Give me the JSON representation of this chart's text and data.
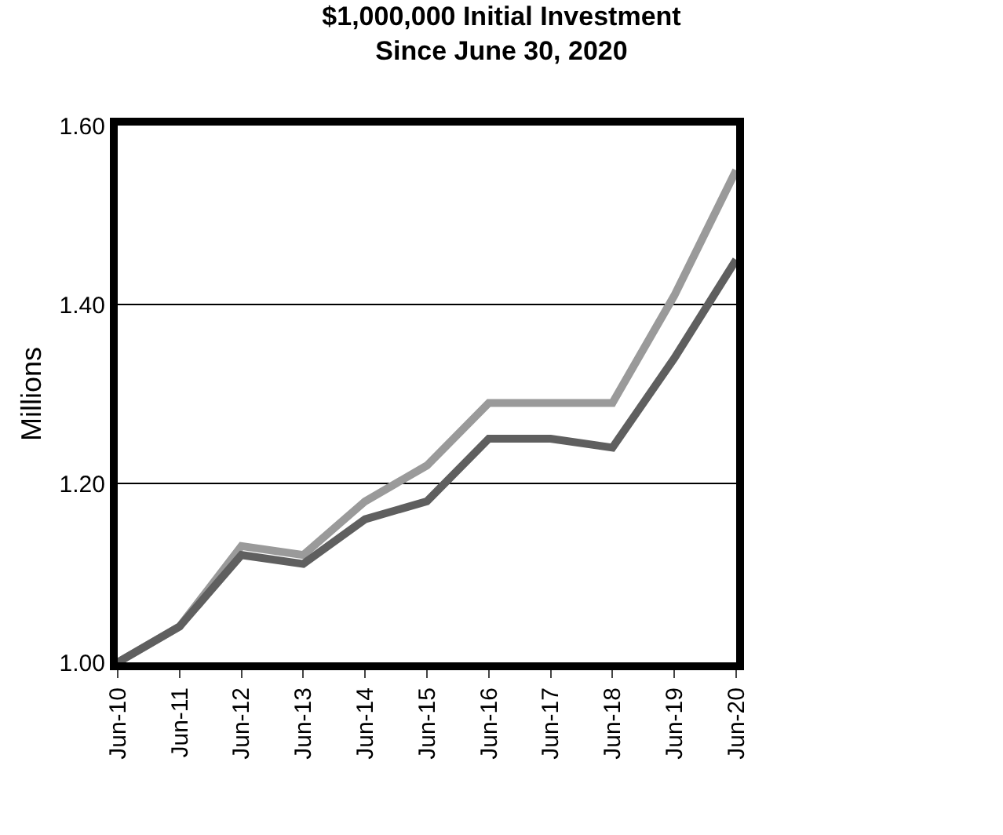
{
  "chart_data": {
    "type": "line",
    "title": "$1,000,000 Initial Investment\nSince June 30, 2020",
    "ylabel": "Millions",
    "categories": [
      "Jun-10",
      "Jun-11",
      "Jun-12",
      "Jun-13",
      "Jun-14",
      "Jun-15",
      "Jun-16",
      "Jun-17",
      "Jun-18",
      "Jun-19",
      "Jun-20"
    ],
    "series": [
      {
        "color": "#9a9a9a",
        "values": [
          1.0,
          1.04,
          1.13,
          1.12,
          1.18,
          1.22,
          1.29,
          1.29,
          1.29,
          1.41,
          1.55
        ]
      },
      {
        "color": "#5f5f5f",
        "values": [
          1.0,
          1.04,
          1.12,
          1.11,
          1.16,
          1.18,
          1.25,
          1.25,
          1.24,
          1.34,
          1.45
        ]
      }
    ],
    "ylim": [
      1.0,
      1.6
    ],
    "yticks": [
      {
        "value": 1.0,
        "label": "1.00"
      },
      {
        "value": 1.2,
        "label": "1.20"
      },
      {
        "value": 1.4,
        "label": "1.40"
      },
      {
        "value": 1.6,
        "label": "1.60"
      }
    ],
    "grid": "y",
    "marker": "none",
    "line_style": "solid"
  }
}
